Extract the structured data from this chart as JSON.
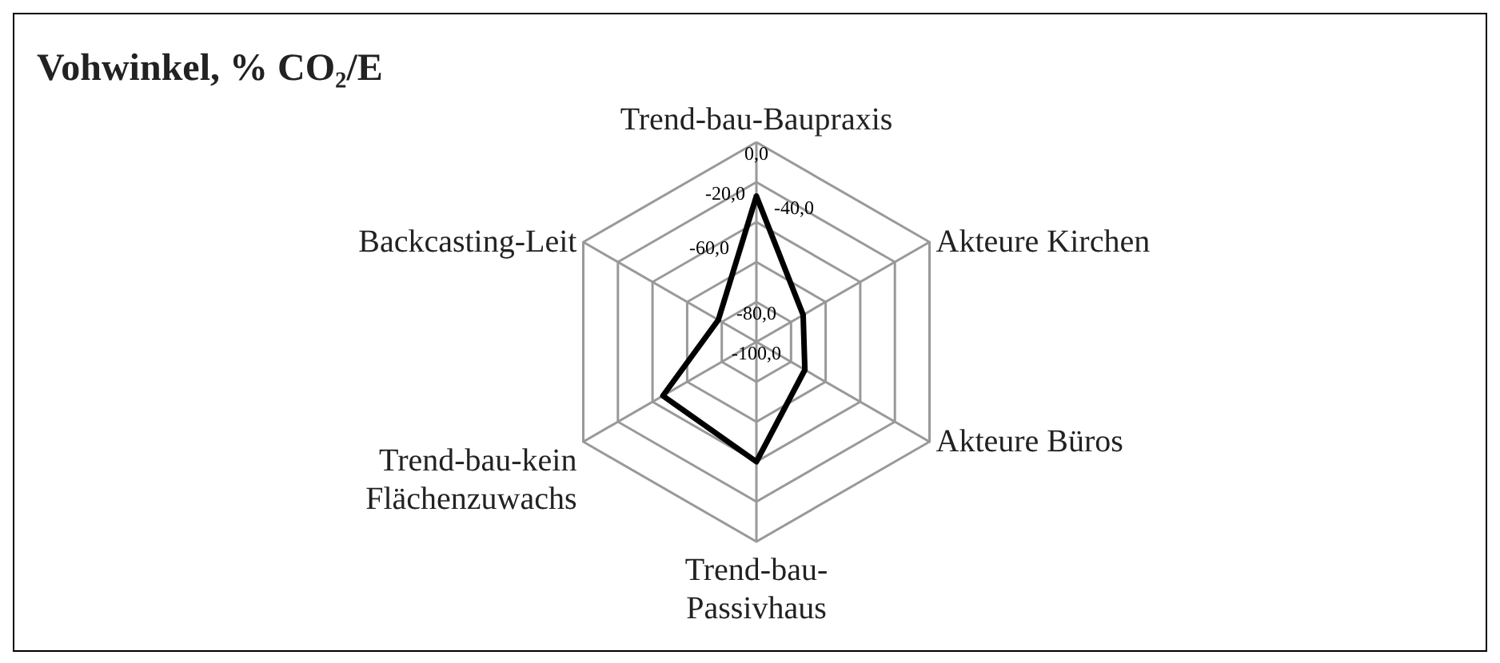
{
  "chart_data": {
    "type": "radar",
    "title": "Vohwinkel, % CO₂/E",
    "categories": [
      "Trend-bau-Baupraxis",
      "Akteure Kirchen",
      "Akteure Büros",
      "Trend-bau-Passivhaus",
      "Trend-bau-kein Flächenzuwachs",
      "Backcasting-Leit"
    ],
    "series": [
      {
        "color": "#000000",
        "values": [
          -27,
          -73,
          -72,
          -40,
          -46,
          -78
        ]
      }
    ],
    "ylim": [
      -100,
      0
    ],
    "yticks": [
      {
        "value": -100,
        "label": "-100,0"
      },
      {
        "value": -80,
        "label": "-80,0"
      },
      {
        "value": -60,
        "label": "-60,0"
      },
      {
        "value": -40,
        "label": "-40,0"
      },
      {
        "value": -20,
        "label": "-20,0"
      },
      {
        "value": 0,
        "label": "0,0"
      }
    ],
    "grid": true
  }
}
